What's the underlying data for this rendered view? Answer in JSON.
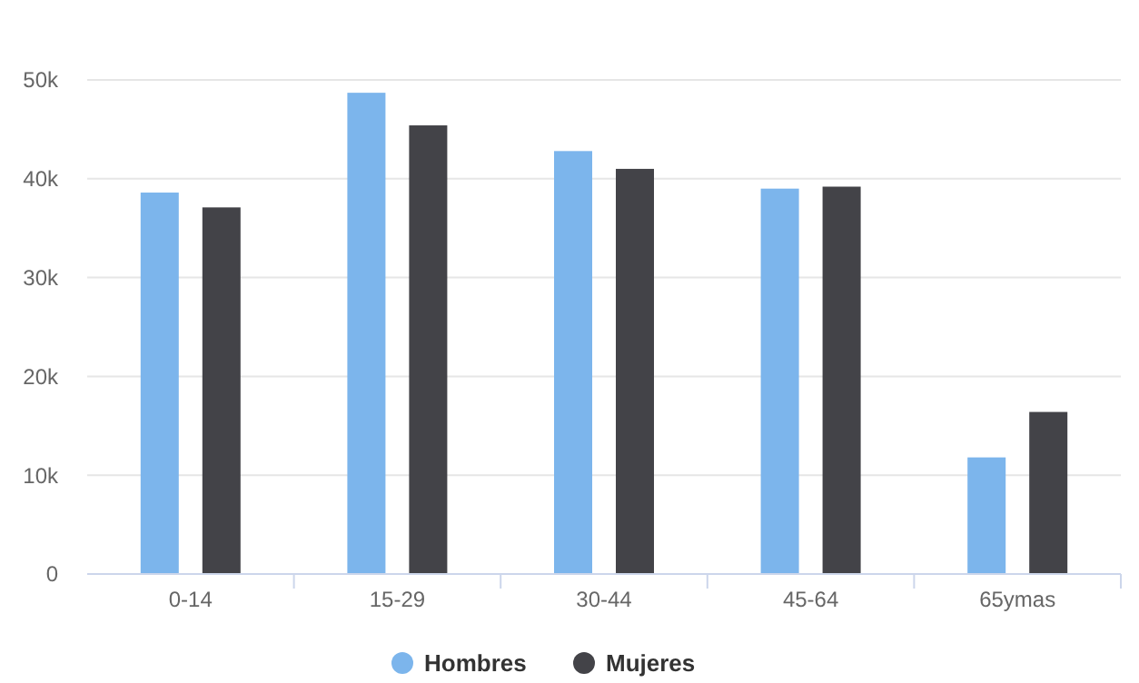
{
  "chart_data": {
    "type": "bar",
    "categories": [
      "0-14",
      "15-29",
      "30-44",
      "45-64",
      "65ymas"
    ],
    "series": [
      {
        "name": "Hombres",
        "color": "#7cb5ec",
        "values": [
          38600,
          48700,
          42800,
          39000,
          11800
        ]
      },
      {
        "name": "Mujeres",
        "color": "#434348",
        "values": [
          37100,
          45400,
          41000,
          39200,
          16400
        ]
      }
    ],
    "ylim": [
      0,
      50000
    ],
    "yticks": [
      {
        "value": 0,
        "label": "0"
      },
      {
        "value": 10000,
        "label": "10k"
      },
      {
        "value": 20000,
        "label": "20k"
      },
      {
        "value": 30000,
        "label": "30k"
      },
      {
        "value": 40000,
        "label": "40k"
      },
      {
        "value": 50000,
        "label": "50k"
      }
    ],
    "grid": "y",
    "legend": "bottom"
  }
}
